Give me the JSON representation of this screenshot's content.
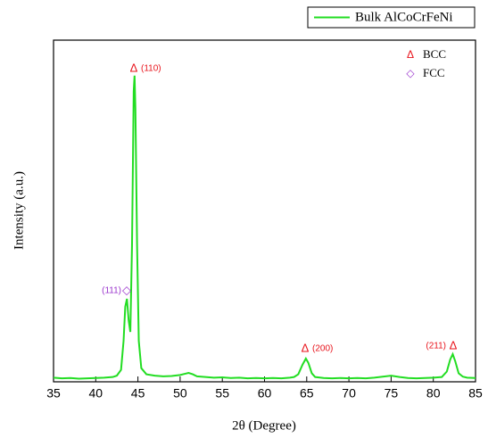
{
  "chart_data": {
    "type": "line",
    "x_label": "2θ (Degree)",
    "y_label": "Intensity (a.u.)",
    "xlim": [
      35,
      85
    ],
    "xticks": [
      35,
      40,
      45,
      50,
      55,
      60,
      65,
      70,
      75,
      80,
      85
    ],
    "ylim": [
      0,
      100
    ],
    "x": [
      35,
      36,
      37,
      38,
      39,
      40,
      41,
      42,
      42.5,
      43,
      43.3,
      43.5,
      43.7,
      43.9,
      44.1,
      44.3,
      44.5,
      44.6,
      44.7,
      44.9,
      45.1,
      45.4,
      46,
      47,
      48,
      49,
      50,
      50.5,
      51,
      51.5,
      52,
      53,
      54,
      55,
      56,
      57,
      58,
      59,
      60,
      61,
      62,
      63,
      63.5,
      64,
      64.5,
      64.9,
      65.2,
      65.6,
      66,
      67,
      68,
      69,
      70,
      71,
      72,
      73,
      74,
      75,
      76,
      77,
      78,
      79,
      80,
      81,
      81.6,
      82,
      82.3,
      82.6,
      83,
      83.5,
      84,
      85
    ],
    "series": [
      {
        "name": "Bulk AlCoCrFeNi",
        "color": "#22dd22",
        "values": [
          1.2,
          1.0,
          1.1,
          0.9,
          1.0,
          1.1,
          1.2,
          1.4,
          1.8,
          3.5,
          12,
          22,
          24.3,
          18,
          14.6,
          40,
          85,
          89.6,
          80,
          40,
          12,
          4,
          2.2,
          1.8,
          1.6,
          1.7,
          2,
          2.3,
          2.6,
          2.2,
          1.6,
          1.4,
          1.2,
          1.3,
          1.1,
          1.2,
          1.0,
          1.1,
          1.0,
          1.1,
          1.0,
          1.2,
          1.4,
          2.2,
          5,
          6.8,
          5.5,
          2.5,
          1.4,
          1.1,
          1.0,
          1.1,
          1.0,
          1.1,
          1.0,
          1.2,
          1.5,
          1.8,
          1.4,
          1.1,
          1.0,
          1.1,
          1.2,
          1.4,
          3,
          6.5,
          8.1,
          6,
          2.5,
          1.5,
          1.2,
          1.1
        ]
      }
    ],
    "phases": [
      {
        "name": "BCC",
        "symbol": "Δ",
        "color": "#e8131b"
      },
      {
        "name": "FCC",
        "symbol": "◇",
        "color": "#9933cc"
      }
    ],
    "annotations": [
      {
        "text": "(110)",
        "symbol": "Δ"
      },
      {
        "text": "(111)",
        "symbol": "◇"
      },
      {
        "text": "(200)",
        "symbol": "Δ"
      },
      {
        "text": "(211)",
        "symbol": "Δ"
      }
    ]
  }
}
